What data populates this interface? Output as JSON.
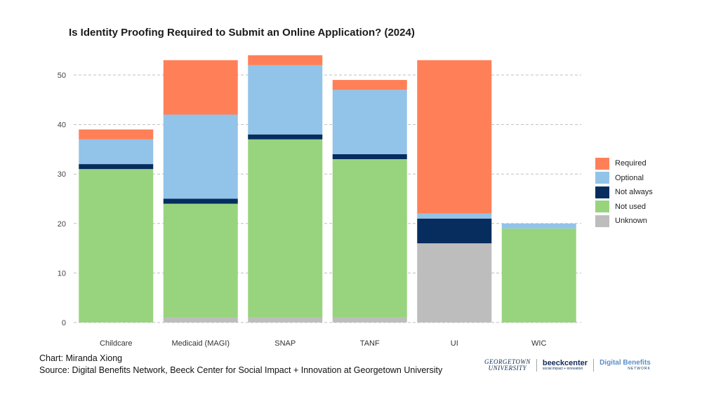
{
  "chart_data": {
    "type": "bar",
    "stacked": true,
    "title": "Is Identity Proofing Required to Submit an Online Application? (2024)",
    "categories": [
      "Childcare",
      "Medicaid (MAGI)",
      "SNAP",
      "TANF",
      "UI",
      "WIC"
    ],
    "series": [
      {
        "name": "Unknown",
        "color": "#bdbdbd",
        "values": [
          0,
          1,
          1,
          1,
          16,
          0
        ]
      },
      {
        "name": "Not used",
        "color": "#98d47e",
        "values": [
          31,
          23,
          36,
          32,
          0,
          19
        ]
      },
      {
        "name": "Not always",
        "color": "#062d5e",
        "values": [
          1,
          1,
          1,
          1,
          5,
          0
        ]
      },
      {
        "name": "Optional",
        "color": "#92c3e9",
        "values": [
          5,
          17,
          14,
          13,
          1,
          1
        ]
      },
      {
        "name": "Required",
        "color": "#ff8058",
        "values": [
          2,
          11,
          2,
          2,
          31,
          0
        ]
      }
    ],
    "legend_order": [
      "Required",
      "Optional",
      "Not always",
      "Not used",
      "Unknown"
    ],
    "yticks": [
      0,
      10,
      20,
      30,
      40,
      50
    ],
    "ylim": [
      0,
      55
    ],
    "grid": true,
    "legend_position": "right"
  },
  "footer": {
    "credit_line": "Chart: Miranda Xiong",
    "source_line": "Source: Digital Benefits Network, Beeck Center for Social Impact + Innovation at Georgetown University"
  },
  "logos": {
    "georgetown_line1": "GEORGETOWN",
    "georgetown_line2": "UNIVERSITY",
    "beeck_name": "beeckcenter",
    "beeck_tagline": "social impact + innovation",
    "dbn_name": "Digital Benefits",
    "dbn_tagline": "NETWORK"
  }
}
